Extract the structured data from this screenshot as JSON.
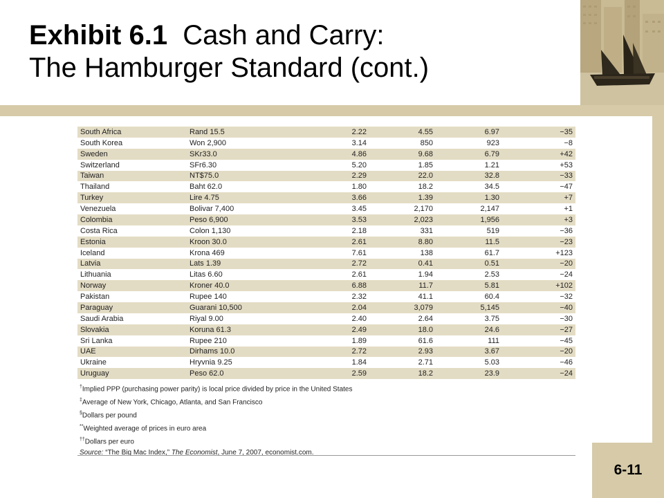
{
  "title": {
    "exhibit": "Exhibit 6.1",
    "line1_rest": "Cash and Carry:",
    "line2": "The Hamburger Standard (cont.)"
  },
  "slide_number": "6-11",
  "table": {
    "rows": [
      [
        "South Africa",
        "Rand 15.5",
        "2.22",
        "4.55",
        "6.97",
        "−35"
      ],
      [
        "South Korea",
        "Won 2,900",
        "3.14",
        "850",
        "923",
        "−8"
      ],
      [
        "Sweden",
        "SKr33.0",
        "4.86",
        "9.68",
        "6.79",
        "+42"
      ],
      [
        "Switzerland",
        "SFr6.30",
        "5.20",
        "1.85",
        "1.21",
        "+53"
      ],
      [
        "Taiwan",
        "NT$75.0",
        "2.29",
        "22.0",
        "32.8",
        "−33"
      ],
      [
        "Thailand",
        "Baht 62.0",
        "1.80",
        "18.2",
        "34.5",
        "−47"
      ],
      [
        "Turkey",
        "Lire 4.75",
        "3.66",
        "1.39",
        "1.30",
        "+7"
      ],
      [
        "Venezuela",
        "Bolivar 7,400",
        "3.45",
        "2,170",
        "2,147",
        "+1"
      ],
      [
        "Colombia",
        "Peso 6,900",
        "3.53",
        "2,023",
        "1,956",
        "+3"
      ],
      [
        "Costa Rica",
        "Colon 1,130",
        "2.18",
        "331",
        "519",
        "−36"
      ],
      [
        "Estonia",
        "Kroon 30.0",
        "2.61",
        "8.80",
        "11.5",
        "−23"
      ],
      [
        "Iceland",
        "Krona 469",
        "7.61",
        "138",
        "61.7",
        "+123"
      ],
      [
        "Latvia",
        "Lats 1.39",
        "2.72",
        "0.41",
        "0.51",
        "−20"
      ],
      [
        "Lithuania",
        "Litas 6.60",
        "2.61",
        "1.94",
        "2.53",
        "−24"
      ],
      [
        "Norway",
        "Kroner 40.0",
        "6.88",
        "11.7",
        "5.81",
        "+102"
      ],
      [
        "Pakistan",
        "Rupee 140",
        "2.32",
        "41.1",
        "60.4",
        "−32"
      ],
      [
        "Paraguay",
        "Guarani 10,500",
        "2.04",
        "3,079",
        "5,145",
        "−40"
      ],
      [
        "Saudi Arabia",
        "Riyal 9.00",
        "2.40",
        "2.64",
        "3.75",
        "−30"
      ],
      [
        "Slovakia",
        "Koruna 61.3",
        "2.49",
        "18.0",
        "24.6",
        "−27"
      ],
      [
        "Sri Lanka",
        "Rupee 210",
        "1.89",
        "61.6",
        "111",
        "−45"
      ],
      [
        "UAE",
        "Dirhams 10.0",
        "2.72",
        "2.93",
        "3.67",
        "−20"
      ],
      [
        "Ukraine",
        "Hryvnia 9.25",
        "1.84",
        "2.71",
        "5.03",
        "−46"
      ],
      [
        "Uruguay",
        "Peso 62.0",
        "2.59",
        "18.2",
        "23.9",
        "−24"
      ]
    ]
  },
  "footnotes": [
    {
      "mark": "†",
      "text": "Implied PPP (purchasing power parity) is local price divided by price in the United States"
    },
    {
      "mark": "‡",
      "text": "Average of New York, Chicago, Atlanta, and San Francisco"
    },
    {
      "mark": "§",
      "text": "Dollars per pound"
    },
    {
      "mark": "**",
      "text": "Weighted average of prices in euro area"
    },
    {
      "mark": "††",
      "text": "Dollars per euro"
    }
  ],
  "source": {
    "label": "Source:",
    "quote": " “The Big Mac Index,” ",
    "publication": "The Economist",
    "rest": ", June 7, 2007, economist.com."
  },
  "image": {
    "icon": "junk-ship-photo"
  }
}
